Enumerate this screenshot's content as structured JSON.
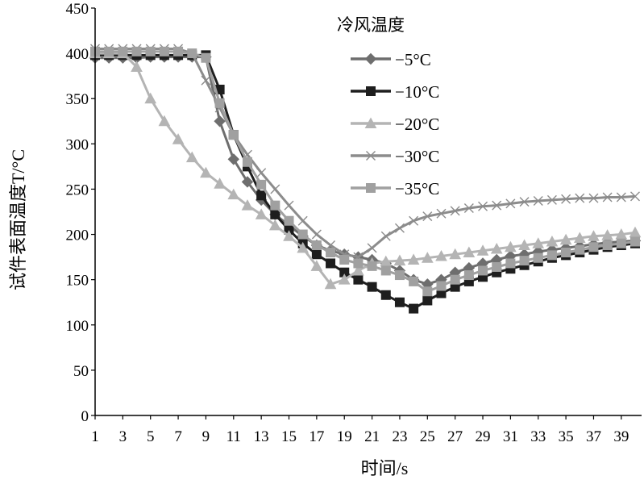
{
  "chart_data": {
    "type": "line",
    "xlabel": "时间/s",
    "ylabel": "试件表面温度T/°C",
    "ylim": [
      0,
      450
    ],
    "yticks": [
      0,
      50,
      100,
      150,
      200,
      250,
      300,
      350,
      400,
      450
    ],
    "xlim": [
      1,
      40
    ],
    "xticks": [
      1,
      3,
      5,
      7,
      9,
      11,
      13,
      15,
      17,
      19,
      21,
      23,
      25,
      27,
      29,
      31,
      33,
      35,
      37,
      39
    ],
    "grid": false,
    "legend_title": "冷风温度",
    "legend_position": "top-right",
    "x": [
      1,
      2,
      3,
      4,
      5,
      6,
      7,
      8,
      9,
      10,
      11,
      12,
      13,
      14,
      15,
      16,
      17,
      18,
      19,
      20,
      21,
      22,
      23,
      24,
      25,
      26,
      27,
      28,
      29,
      30,
      31,
      32,
      33,
      34,
      35,
      36,
      37,
      38,
      39,
      40
    ],
    "series": [
      {
        "name": "−5°C",
        "marker": "diamond",
        "color": "#6e6e6e",
        "values": [
          395,
          395,
          395,
          395,
          396,
          396,
          396,
          396,
          396,
          325,
          283,
          258,
          238,
          222,
          210,
          198,
          188,
          182,
          178,
          175,
          172,
          168,
          160,
          150,
          145,
          150,
          158,
          163,
          168,
          172,
          176,
          178,
          181,
          183,
          185,
          187,
          189,
          191,
          192,
          193
        ]
      },
      {
        "name": "−10°C",
        "marker": "square",
        "color": "#1e1e1e",
        "values": [
          398,
          398,
          398,
          398,
          398,
          398,
          398,
          398,
          398,
          360,
          310,
          275,
          243,
          222,
          205,
          190,
          178,
          168,
          158,
          150,
          142,
          133,
          125,
          118,
          127,
          135,
          142,
          148,
          153,
          158,
          162,
          166,
          170,
          174,
          177,
          180,
          183,
          186,
          188,
          190
        ]
      },
      {
        "name": "−20°C",
        "marker": "triangle",
        "color": "#b4b4b4",
        "values": [
          400,
          400,
          400,
          385,
          350,
          325,
          305,
          285,
          268,
          256,
          244,
          232,
          222,
          210,
          198,
          185,
          165,
          145,
          150,
          160,
          168,
          170,
          171,
          172,
          174,
          176,
          178,
          180,
          182,
          184,
          186,
          188,
          190,
          192,
          194,
          196,
          198,
          199,
          200,
          202
        ]
      },
      {
        "name": "−30°C",
        "marker": "cross",
        "color": "#8c8c8c",
        "values": [
          405,
          405,
          405,
          405,
          405,
          405,
          405,
          400,
          370,
          340,
          310,
          288,
          268,
          250,
          232,
          215,
          200,
          188,
          178,
          175,
          185,
          198,
          207,
          215,
          220,
          223,
          226,
          229,
          231,
          232,
          234,
          236,
          237,
          238,
          239,
          240,
          240,
          241,
          241,
          242
        ]
      },
      {
        "name": "−35°C",
        "marker": "square",
        "color": "#a0a0a0",
        "values": [
          402,
          402,
          402,
          402,
          402,
          402,
          402,
          400,
          395,
          345,
          310,
          280,
          255,
          232,
          215,
          200,
          188,
          180,
          172,
          168,
          165,
          160,
          155,
          148,
          137,
          143,
          150,
          155,
          160,
          164,
          168,
          171,
          174,
          177,
          180,
          183,
          186,
          188,
          190,
          192
        ]
      }
    ]
  }
}
